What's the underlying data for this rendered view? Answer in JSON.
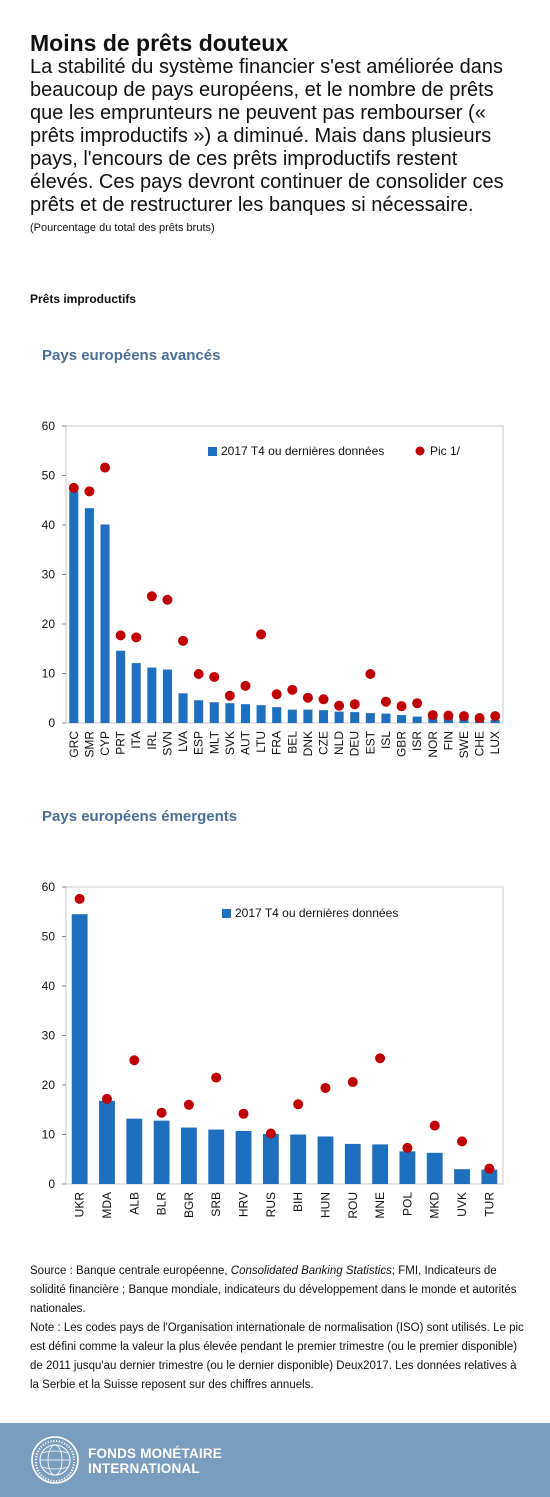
{
  "header": {
    "title": "Moins de prêts douteux",
    "subtitle": "La stabilité du système financier s'est améliorée dans beaucoup de pays européens, et le nombre de prêts que les emprunteurs ne peuvent pas rembourser (« prêts improductifs ») a diminué. Mais dans plusieurs pays, l'encours de ces prêts improductifs restent élevés. Ces pays devront continuer de consolider ces prêts et de restructurer les banques si nécessaire.",
    "unit": "(Pourcentage du total des prêts bruts)",
    "section": "Prêts improductifs"
  },
  "chart_data": [
    {
      "type": "bar",
      "title": "Pays européens avancés",
      "categories": [
        "GRC",
        "SMR",
        "CYP",
        "PRT",
        "ITA",
        "IRL",
        "SVN",
        "LVA",
        "ESP",
        "MLT",
        "SVK",
        "AUT",
        "LTU",
        "FRA",
        "BEL",
        "DNK",
        "CZE",
        "NLD",
        "DEU",
        "EST",
        "ISL",
        "GBR",
        "ISR",
        "NOR",
        "FIN",
        "SWE",
        "CHE",
        "LUX"
      ],
      "series": [
        {
          "name": "2017 T4 ou dernières données",
          "kind": "bar",
          "color": "#1f6fbf",
          "values": [
            46.8,
            43.4,
            40.1,
            14.6,
            12.1,
            11.2,
            10.8,
            6.0,
            4.6,
            4.2,
            4.0,
            3.8,
            3.6,
            3.2,
            2.7,
            2.7,
            2.6,
            2.3,
            2.2,
            2.0,
            1.9,
            1.6,
            1.3,
            1.1,
            1.1,
            1.0,
            0.8,
            0.6
          ]
        },
        {
          "name": "Pic 1/",
          "kind": "dot",
          "color": "#c00000",
          "values": [
            47.5,
            46.8,
            51.6,
            17.7,
            17.3,
            25.6,
            24.9,
            16.6,
            9.9,
            9.3,
            5.5,
            7.5,
            17.9,
            5.8,
            6.7,
            5.1,
            4.8,
            3.5,
            3.8,
            9.9,
            4.3,
            3.4,
            4.0,
            1.6,
            1.5,
            1.4,
            1.0,
            1.4
          ]
        }
      ],
      "ylim": [
        0,
        60
      ],
      "yticks": [
        0,
        10,
        20,
        30,
        40,
        50,
        60
      ],
      "legend": "top-right"
    },
    {
      "type": "bar",
      "title": "Pays européens émergents",
      "categories": [
        "UKR",
        "MDA",
        "ALB",
        "BLR",
        "BGR",
        "SRB",
        "HRV",
        "RUS",
        "BIH",
        "HUN",
        "ROU",
        "MNE",
        "POL",
        "MKD",
        "UVK",
        "TUR"
      ],
      "series": [
        {
          "name": "2017 T4 ou dernières données",
          "kind": "bar",
          "color": "#1f6fbf",
          "values": [
            54.5,
            16.8,
            13.2,
            12.8,
            11.4,
            11.0,
            10.7,
            10.1,
            10.0,
            9.6,
            8.1,
            8.0,
            6.6,
            6.3,
            3.0,
            2.9
          ]
        },
        {
          "name": "",
          "kind": "dot",
          "color": "#c00000",
          "values": [
            57.6,
            17.2,
            25.0,
            14.4,
            16.0,
            21.5,
            14.2,
            10.2,
            16.1,
            19.4,
            20.6,
            25.4,
            7.3,
            11.8,
            8.6,
            3.1
          ]
        }
      ],
      "ylim": [
        0,
        60
      ],
      "yticks": [
        0,
        10,
        20,
        30,
        40,
        50,
        60
      ],
      "legend": "top-center"
    }
  ],
  "notes": {
    "source_prefix": "Source : Banque centrale européenne, ",
    "source_italic": "Consolidated Banking Statistics",
    "source_suffix": "; FMI, Indicateurs de solidité financière ; Banque mondiale, indicateurs du développement dans le monde et autorités nationales.",
    "note": "Note : Les codes pays de l'Organisation internationale de normalisation (ISO) sont utilisés. Le pic est défini comme la valeur la plus élevée pendant le premier trimestre (ou le premier disponible) de 2011 jusqu'au dernier trimestre (ou le dernier disponible) Deux2017. Les données relatives à la Serbie et la Suisse reposent sur des chiffres annuels."
  },
  "footer": {
    "org_line1": "FONDS MONÉTAIRE",
    "org_line2": "INTERNATIONAL",
    "seal_text": "FONDS MONÉTAIRE INTERNATIONAL"
  },
  "colors": {
    "bar": "#1f6fbf",
    "dot": "#c00000",
    "footer": "#7a9dbd",
    "chart_title": "#4a6f96"
  }
}
